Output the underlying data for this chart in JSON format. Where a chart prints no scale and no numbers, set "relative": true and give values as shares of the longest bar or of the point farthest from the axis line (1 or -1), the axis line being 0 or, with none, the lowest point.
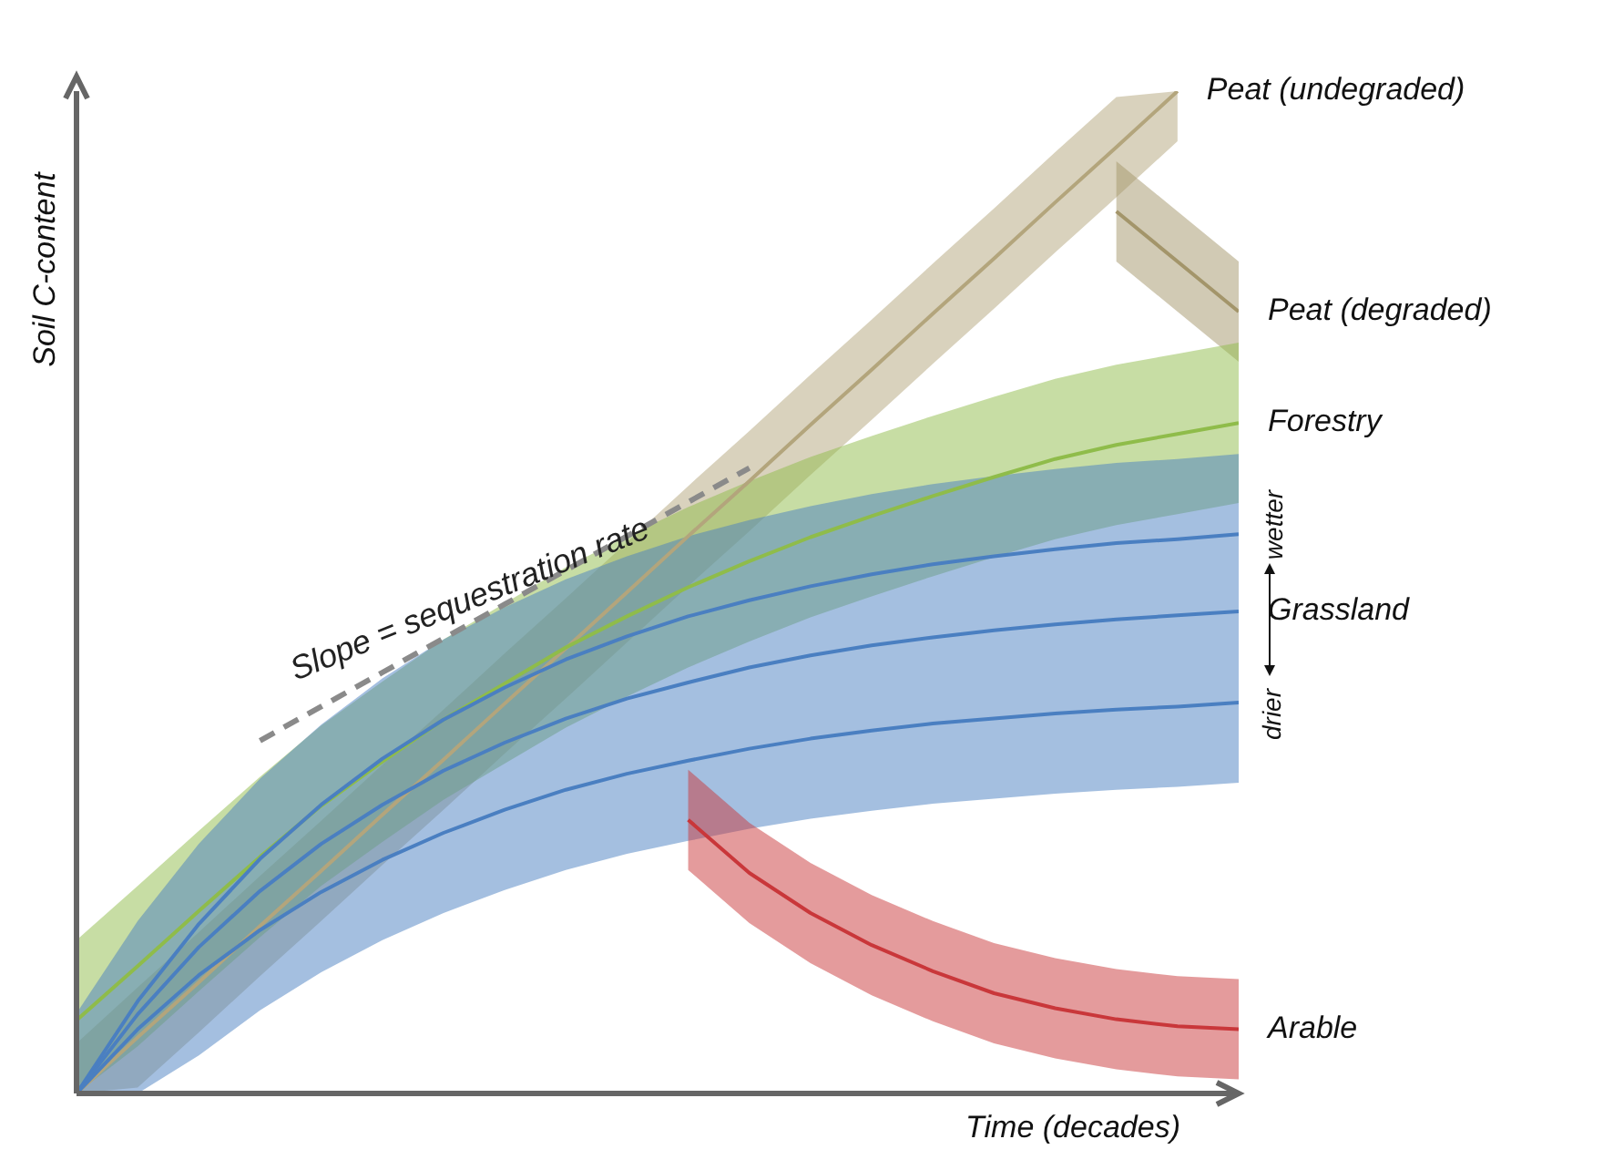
{
  "chart_data": {
    "type": "line",
    "relative": true,
    "legend": "right",
    "grid": false,
    "marker": "none",
    "xlabel": "Time (decades)",
    "ylabel": "Soil C-content",
    "annotations": [
      "Slope = sequestration rate",
      "wetter",
      "drier"
    ],
    "categories": [
      null,
      null,
      null,
      null,
      null,
      null,
      null,
      null,
      null,
      null,
      null,
      null,
      null,
      null,
      null,
      null,
      null,
      null,
      null,
      null
    ],
    "series": [
      {
        "name": "Peat (undegraded)",
        "color": "#b3a57c",
        "values": [
          0,
          0.056,
          0.111,
          0.167,
          0.222,
          0.278,
          0.333,
          0.389,
          0.444,
          0.5,
          0.556,
          0.611,
          0.667,
          0.722,
          0.778,
          0.833,
          0.889,
          0.944,
          1,
          null
        ],
        "lower": [
          0,
          0.006,
          0.061,
          0.117,
          0.172,
          0.228,
          0.283,
          0.339,
          0.394,
          0.45,
          0.506,
          0.561,
          0.617,
          0.672,
          0.728,
          0.783,
          0.839,
          0.894,
          0.95,
          null
        ],
        "upper": [
          0.05,
          0.106,
          0.161,
          0.217,
          0.272,
          0.328,
          0.383,
          0.439,
          0.494,
          0.55,
          0.606,
          0.661,
          0.717,
          0.772,
          0.828,
          0.883,
          0.939,
          0.994,
          1,
          null
        ]
      },
      {
        "name": "Peat (degraded)",
        "color": "#a3956a",
        "values": [
          null,
          null,
          null,
          null,
          null,
          null,
          null,
          null,
          null,
          null,
          null,
          null,
          null,
          null,
          null,
          null,
          null,
          0.88,
          0.83,
          0.78
        ],
        "lower": [
          null,
          null,
          null,
          null,
          null,
          null,
          null,
          null,
          null,
          null,
          null,
          null,
          null,
          null,
          null,
          null,
          null,
          0.83,
          0.78,
          0.73
        ],
        "upper": [
          null,
          null,
          null,
          null,
          null,
          null,
          null,
          null,
          null,
          null,
          null,
          null,
          null,
          null,
          null,
          null,
          null,
          0.93,
          0.88,
          0.83
        ]
      },
      {
        "name": "Forestry",
        "color": "#8fbc4a",
        "values": [
          0.073,
          0.127,
          0.182,
          0.236,
          0.287,
          0.331,
          0.373,
          0.409,
          0.445,
          0.476,
          0.505,
          0.531,
          0.555,
          0.576,
          0.596,
          0.615,
          0.633,
          0.647,
          0.658,
          0.669
        ],
        "lower": [
          0,
          0.047,
          0.102,
          0.156,
          0.207,
          0.251,
          0.293,
          0.329,
          0.365,
          0.396,
          0.425,
          0.451,
          0.475,
          0.496,
          0.516,
          0.535,
          0.553,
          0.567,
          0.578,
          0.589
        ],
        "upper": [
          0.153,
          0.207,
          0.262,
          0.316,
          0.367,
          0.411,
          0.453,
          0.489,
          0.525,
          0.556,
          0.585,
          0.611,
          0.635,
          0.656,
          0.676,
          0.695,
          0.713,
          0.727,
          0.738,
          0.749
        ]
      },
      {
        "color": "#4a7fc1",
        "values": [
          0,
          0.092,
          0.169,
          0.234,
          0.288,
          0.334,
          0.373,
          0.405,
          0.433,
          0.456,
          0.476,
          0.492,
          0.506,
          0.518,
          0.528,
          0.536,
          0.543,
          0.549,
          0.553,
          0.558
        ]
      },
      {
        "name": "Grassland",
        "color": "#4a7fc1",
        "values": [
          0,
          0.079,
          0.146,
          0.202,
          0.249,
          0.288,
          0.322,
          0.35,
          0.374,
          0.394,
          0.41,
          0.425,
          0.437,
          0.447,
          0.455,
          0.462,
          0.468,
          0.473,
          0.477,
          0.481
        ],
        "lower": [
          0,
          0,
          0.038,
          0.083,
          0.121,
          0.153,
          0.18,
          0.203,
          0.223,
          0.239,
          0.252,
          0.264,
          0.274,
          0.282,
          0.289,
          0.294,
          0.299,
          0.303,
          0.306,
          0.31
        ],
        "upper": [
          0.08,
          0.172,
          0.249,
          0.314,
          0.368,
          0.414,
          0.453,
          0.485,
          0.513,
          0.536,
          0.556,
          0.572,
          0.586,
          0.598,
          0.608,
          0.616,
          0.623,
          0.629,
          0.633,
          0.638
        ]
      },
      {
        "color": "#4a7fc1",
        "values": [
          0,
          0.064,
          0.118,
          0.163,
          0.201,
          0.233,
          0.26,
          0.283,
          0.303,
          0.319,
          0.332,
          0.344,
          0.354,
          0.362,
          0.369,
          0.374,
          0.379,
          0.383,
          0.386,
          0.39
        ]
      },
      {
        "name": "Arable",
        "color": "#c9373a",
        "values": [
          null,
          null,
          null,
          null,
          null,
          null,
          null,
          null,
          null,
          null,
          0.273,
          0.22,
          0.18,
          0.148,
          0.122,
          0.1,
          0.085,
          0.074,
          0.067,
          0.064
        ],
        "lower": [
          null,
          null,
          null,
          null,
          null,
          null,
          null,
          null,
          null,
          null,
          0.223,
          0.17,
          0.13,
          0.098,
          0.072,
          0.05,
          0.035,
          0.024,
          0.017,
          0.014
        ],
        "upper": [
          null,
          null,
          null,
          null,
          null,
          null,
          null,
          null,
          null,
          null,
          0.323,
          0.27,
          0.23,
          0.198,
          0.172,
          0.15,
          0.135,
          0.124,
          0.117,
          0.114
        ]
      },
      {
        "color": "#8a8a8a",
        "line_style": "dashed",
        "values": [
          null,
          null,
          null,
          0.352,
          0.386,
          0.42,
          0.454,
          0.488,
          0.522,
          0.556,
          0.59,
          0.624,
          null,
          null,
          null,
          null,
          null,
          null,
          null,
          null
        ]
      }
    ]
  }
}
